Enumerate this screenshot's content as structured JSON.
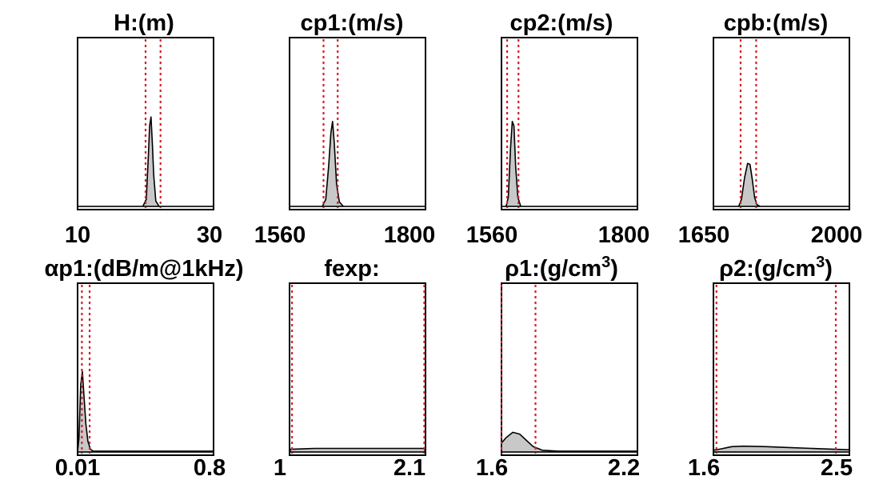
{
  "chart_data": [
    {
      "type": "area",
      "title": "H:(m)",
      "xlim": [
        10,
        30
      ],
      "xticks": [
        "10",
        "30"
      ],
      "bounds": [
        20.0,
        22.2
      ],
      "density": [
        [
          10,
          0
        ],
        [
          19.6,
          0
        ],
        [
          20.1,
          0.08
        ],
        [
          20.4,
          0.55
        ],
        [
          20.6,
          0.9
        ],
        [
          20.8,
          1.0
        ],
        [
          21.0,
          0.7
        ],
        [
          21.2,
          0.35
        ],
        [
          21.5,
          0.06
        ],
        [
          22,
          0
        ],
        [
          30,
          0
        ]
      ]
    },
    {
      "type": "area",
      "title": "cp1:(m/s)",
      "xlim": [
        1560,
        1800
      ],
      "xticks": [
        "1560",
        "1800"
      ],
      "bounds": [
        1620,
        1645
      ],
      "density": [
        [
          1560,
          0
        ],
        [
          1618,
          0
        ],
        [
          1624,
          0.08
        ],
        [
          1629,
          0.45
        ],
        [
          1633,
          0.82
        ],
        [
          1636,
          0.95
        ],
        [
          1639,
          0.7
        ],
        [
          1643,
          0.25
        ],
        [
          1648,
          0.05
        ],
        [
          1655,
          0
        ],
        [
          1800,
          0
        ]
      ]
    },
    {
      "type": "area",
      "title": "cp2:(m/s)",
      "xlim": [
        1560,
        1800
      ],
      "xticks": [
        "1560",
        "1800"
      ],
      "bounds": [
        1570,
        1590
      ],
      "density": [
        [
          1560,
          0
        ],
        [
          1568,
          0
        ],
        [
          1572,
          0.1
        ],
        [
          1576,
          0.65
        ],
        [
          1579,
          0.95
        ],
        [
          1582,
          0.9
        ],
        [
          1585,
          0.45
        ],
        [
          1589,
          0.1
        ],
        [
          1594,
          0
        ],
        [
          1800,
          0
        ]
      ]
    },
    {
      "type": "area",
      "title": "cpb:(m/s)",
      "xlim": [
        1650,
        2000
      ],
      "xticks": [
        "1650",
        "2000"
      ],
      "bounds": [
        1720,
        1760
      ],
      "density": [
        [
          1650,
          0
        ],
        [
          1715,
          0
        ],
        [
          1722,
          0.08
        ],
        [
          1730,
          0.32
        ],
        [
          1738,
          0.48
        ],
        [
          1744,
          0.47
        ],
        [
          1750,
          0.3
        ],
        [
          1756,
          0.1
        ],
        [
          1762,
          0.02
        ],
        [
          1770,
          0
        ],
        [
          2000,
          0
        ]
      ]
    },
    {
      "type": "area",
      "title": "αp1:(dB/m@1kHz)",
      "xlim": [
        0.01,
        0.8
      ],
      "xticks": [
        "0.01",
        "0.8"
      ],
      "bounds": [
        0.035,
        0.08
      ],
      "density": [
        [
          0.01,
          0
        ],
        [
          0.018,
          0.15
        ],
        [
          0.028,
          0.75
        ],
        [
          0.038,
          0.9
        ],
        [
          0.048,
          0.6
        ],
        [
          0.058,
          0.32
        ],
        [
          0.07,
          0.12
        ],
        [
          0.085,
          0.03
        ],
        [
          0.1,
          0.01
        ],
        [
          0.8,
          0.01
        ]
      ]
    },
    {
      "type": "area",
      "title": "fexp:",
      "xlim": [
        1,
        2.1
      ],
      "xticks": [
        "1",
        "2.1"
      ],
      "bounds": [
        1.02,
        2.09
      ],
      "density": [
        [
          1,
          0
        ],
        [
          1.01,
          0.03
        ],
        [
          1.2,
          0.04
        ],
        [
          1.6,
          0.04
        ],
        [
          2.0,
          0.04
        ],
        [
          2.09,
          0.04
        ],
        [
          2.1,
          0
        ]
      ]
    },
    {
      "type": "area",
      "title": "ρ1:(g/cm<sup>3</sup>)",
      "title_base": "ρ1:(g/cm",
      "title_sup": "3",
      "title_end": ")",
      "xlim": [
        1.6,
        2.2
      ],
      "xticks": [
        "1.6",
        "2.2"
      ],
      "bounds": [
        1.6,
        1.75
      ],
      "density": [
        [
          1.6,
          0.1
        ],
        [
          1.62,
          0.16
        ],
        [
          1.65,
          0.22
        ],
        [
          1.68,
          0.2
        ],
        [
          1.71,
          0.13
        ],
        [
          1.74,
          0.06
        ],
        [
          1.78,
          0.02
        ],
        [
          1.85,
          0.01
        ],
        [
          2.2,
          0.01
        ]
      ]
    },
    {
      "type": "area",
      "title": "ρ2:(g/cm<sup>3</sup>)",
      "title_base": "ρ2:(g/cm",
      "title_sup": "3",
      "title_end": ")",
      "xlim": [
        1.6,
        2.5
      ],
      "xticks": [
        "1.6",
        "2.5"
      ],
      "bounds": [
        1.62,
        2.41
      ],
      "density": [
        [
          1.6,
          0.02
        ],
        [
          1.65,
          0.035
        ],
        [
          1.72,
          0.06
        ],
        [
          1.8,
          0.065
        ],
        [
          1.95,
          0.06
        ],
        [
          2.1,
          0.05
        ],
        [
          2.25,
          0.04
        ],
        [
          2.4,
          0.03
        ],
        [
          2.5,
          0.025
        ]
      ]
    }
  ],
  "colors": {
    "fill": "#c8c8c8",
    "line": "#000000",
    "bound": "#d4202a"
  }
}
